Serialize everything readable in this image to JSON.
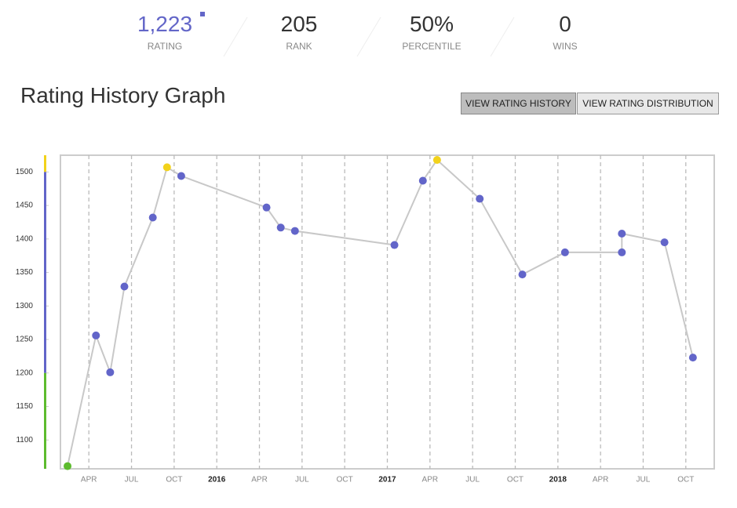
{
  "stats": [
    {
      "value": "1,223",
      "label": "RATING"
    },
    {
      "value": "205",
      "label": "RANK"
    },
    {
      "value": "50%",
      "label": "PERCENTILE"
    },
    {
      "value": "0",
      "label": "WINS"
    }
  ],
  "header": {
    "title": "Rating History Graph"
  },
  "buttons": [
    "VIEW RATING HISTORY",
    "VIEW RATING DISTRIBUTION"
  ],
  "chart_data": {
    "type": "line",
    "x": [
      "2015-02",
      "2015-04",
      "2015-05",
      "2015-06",
      "2015-08",
      "2015-09",
      "2015-10",
      "2016-04",
      "2016-05",
      "2016-06",
      "2017-01",
      "2017-03",
      "2017-04",
      "2017-07",
      "2017-10",
      "2018-01",
      "2018-05",
      "2018-05",
      "2018-08",
      "2018-10"
    ],
    "values": [
      1061,
      1256,
      1201,
      1329,
      1432,
      1507,
      1494,
      1447,
      1417,
      1412,
      1391,
      1487,
      1518,
      1460,
      1347,
      1380,
      1380,
      1408,
      1395,
      1223
    ],
    "color": "#c8c8c8",
    "bands": [
      {
        "min": 1500,
        "color": "#f2d21b"
      },
      {
        "min": 1200,
        "color": "#6265c9"
      },
      {
        "min": 900,
        "color": "#5dbb2e"
      }
    ],
    "ylim": [
      1057,
      1525
    ],
    "yticks": [
      1100,
      1150,
      1200,
      1250,
      1300,
      1350,
      1400,
      1450,
      1500
    ],
    "xlim": [
      "2015-02",
      "2018-11"
    ],
    "xticks": [
      {
        "value": "2015-04",
        "label": "APR"
      },
      {
        "value": "2015-07",
        "label": "JUL"
      },
      {
        "value": "2015-10",
        "label": "OCT"
      },
      {
        "value": "2016-01",
        "label": "2016"
      },
      {
        "value": "2016-04",
        "label": "APR"
      },
      {
        "value": "2016-07",
        "label": "JUL"
      },
      {
        "value": "2016-10",
        "label": "OCT"
      },
      {
        "value": "2017-01",
        "label": "2017"
      },
      {
        "value": "2017-04",
        "label": "APR"
      },
      {
        "value": "2017-07",
        "label": "JUL"
      },
      {
        "value": "2017-10",
        "label": "OCT"
      },
      {
        "value": "2018-01",
        "label": "2018"
      },
      {
        "value": "2018-04",
        "label": "APR"
      },
      {
        "value": "2018-07",
        "label": "JUL"
      },
      {
        "value": "2018-10",
        "label": "OCT"
      }
    ],
    "grid": true
  }
}
